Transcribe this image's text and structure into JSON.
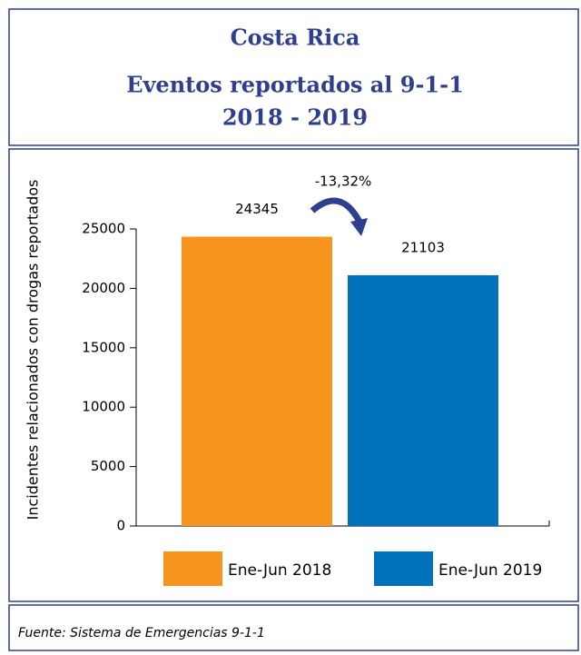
{
  "header": {
    "title": "Costa Rica",
    "subtitle": "Eventos reportados al 9-1-1",
    "years": "2018 - 2019"
  },
  "chart_data": {
    "type": "bar",
    "y_label": "Incidentes relacionados con drogas reportados",
    "categories": [
      "Ene-Jun 2018",
      "Ene-Jun 2019"
    ],
    "values": [
      24345,
      21103
    ],
    "colors": [
      "#f7941d",
      "#0072bc"
    ],
    "annotation": "-13,32%",
    "ylim": [
      0,
      25000
    ],
    "yticks": [
      0,
      5000,
      10000,
      15000,
      20000,
      25000
    ],
    "grid": false
  },
  "footer": {
    "source": "Fuente: Sistema de Emergencias 9-1-1"
  }
}
